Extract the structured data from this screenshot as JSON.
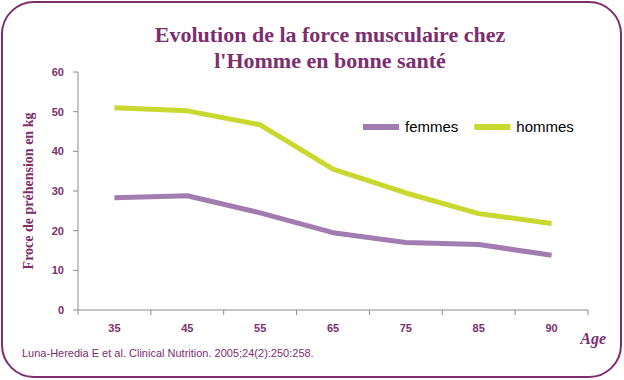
{
  "chart_data": {
    "type": "line",
    "title": "Evolution de la force musculaire chez l'Homme en bonne santé",
    "x_label": "Age",
    "y_label": "Froce de préhension en kg",
    "source": "Luna-Heredia E et al. Clinical Nutrition. 2005;24(2):250:258.",
    "categories": [
      "35",
      "45",
      "55",
      "65",
      "75",
      "85",
      "90"
    ],
    "series": [
      {
        "name": "femmes",
        "color": "#a27cb0",
        "values": [
          28.3,
          28.8,
          24.5,
          19.5,
          17.0,
          16.5,
          13.8
        ]
      },
      {
        "name": "hommes",
        "color": "#c8d82e",
        "values": [
          51.0,
          50.2,
          46.7,
          35.5,
          29.5,
          24.3,
          21.8
        ]
      }
    ],
    "ylim": [
      0,
      60
    ],
    "yticks": [
      0,
      10,
      20,
      30,
      40,
      50,
      60
    ],
    "grid": false,
    "legend": "top-right"
  }
}
